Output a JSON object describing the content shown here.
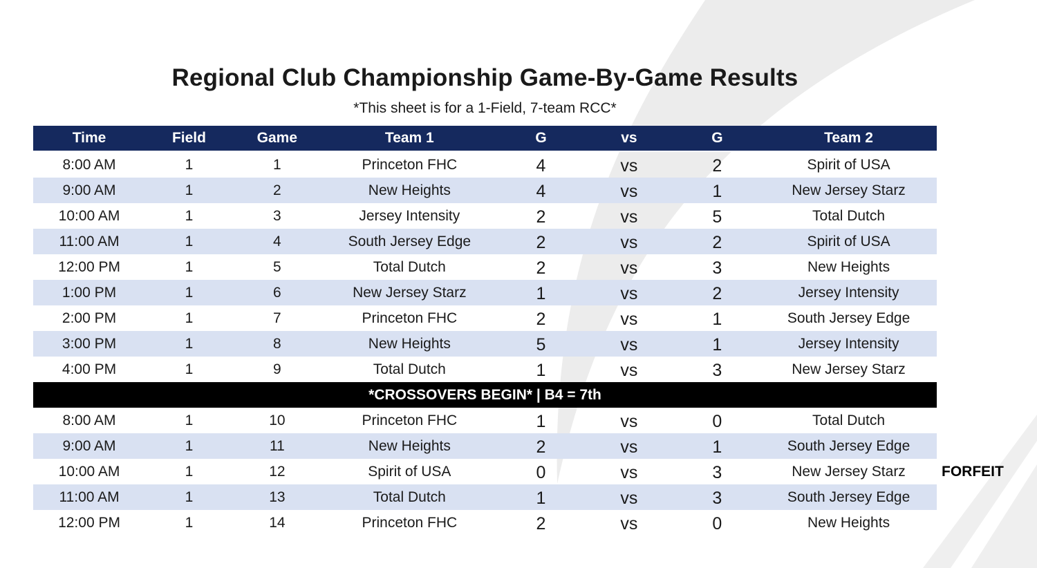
{
  "page": {
    "title": "Regional Club Championship Game-By-Game Results",
    "subtitle": "*This sheet is for a 1-Field, 7-team RCC*"
  },
  "table": {
    "columns": [
      "Time",
      "Field",
      "Game",
      "Team 1",
      "G",
      "vs",
      "G",
      "Team 2"
    ],
    "morning_rows": [
      [
        "8:00 AM",
        "1",
        "1",
        "Princeton FHC",
        "4",
        "vs",
        "2",
        "Spirit of USA"
      ],
      [
        "9:00 AM",
        "1",
        "2",
        "New Heights",
        "4",
        "vs",
        "1",
        "New Jersey Starz"
      ],
      [
        "10:00 AM",
        "1",
        "3",
        "Jersey Intensity",
        "2",
        "vs",
        "5",
        "Total Dutch"
      ],
      [
        "11:00 AM",
        "1",
        "4",
        "South Jersey Edge",
        "2",
        "vs",
        "2",
        "Spirit of USA"
      ],
      [
        "12:00 PM",
        "1",
        "5",
        "Total Dutch",
        "2",
        "vs",
        "3",
        "New Heights"
      ],
      [
        "1:00 PM",
        "1",
        "6",
        "New Jersey Starz",
        "1",
        "vs",
        "2",
        "Jersey Intensity"
      ],
      [
        "2:00 PM",
        "1",
        "7",
        "Princeton FHC",
        "2",
        "vs",
        "1",
        "South Jersey Edge"
      ],
      [
        "3:00 PM",
        "1",
        "8",
        "New Heights",
        "5",
        "vs",
        "1",
        "Jersey Intensity"
      ],
      [
        "4:00 PM",
        "1",
        "9",
        "Total Dutch",
        "1",
        "vs",
        "3",
        "New Jersey Starz"
      ]
    ],
    "divider_label": "*CROSSOVERS BEGIN* | B4 = 7th",
    "crossover_rows": [
      [
        "8:00 AM",
        "1",
        "10",
        "Princeton FHC",
        "1",
        "vs",
        "0",
        "Total Dutch"
      ],
      [
        "9:00 AM",
        "1",
        "11",
        "New Heights",
        "2",
        "vs",
        "1",
        "South Jersey Edge"
      ],
      [
        "10:00 AM",
        "1",
        "12",
        "Spirit of USA",
        "0",
        "vs",
        "3",
        "New Jersey Starz"
      ],
      [
        "11:00 AM",
        "1",
        "13",
        "Total Dutch",
        "1",
        "vs",
        "3",
        "South Jersey Edge"
      ],
      [
        "12:00 PM",
        "1",
        "14",
        "Princeton FHC",
        "2",
        "vs",
        "0",
        "New Heights"
      ]
    ],
    "forfeit_label": "FORFEIT"
  },
  "colors": {
    "header_bg": "#15295e",
    "row_alt_bg": "#d9e1f2",
    "divider_bg": "#000000",
    "header_text": "#ffffff",
    "body_text": "#1a1a1a",
    "watermark_gray": "#ececec"
  }
}
